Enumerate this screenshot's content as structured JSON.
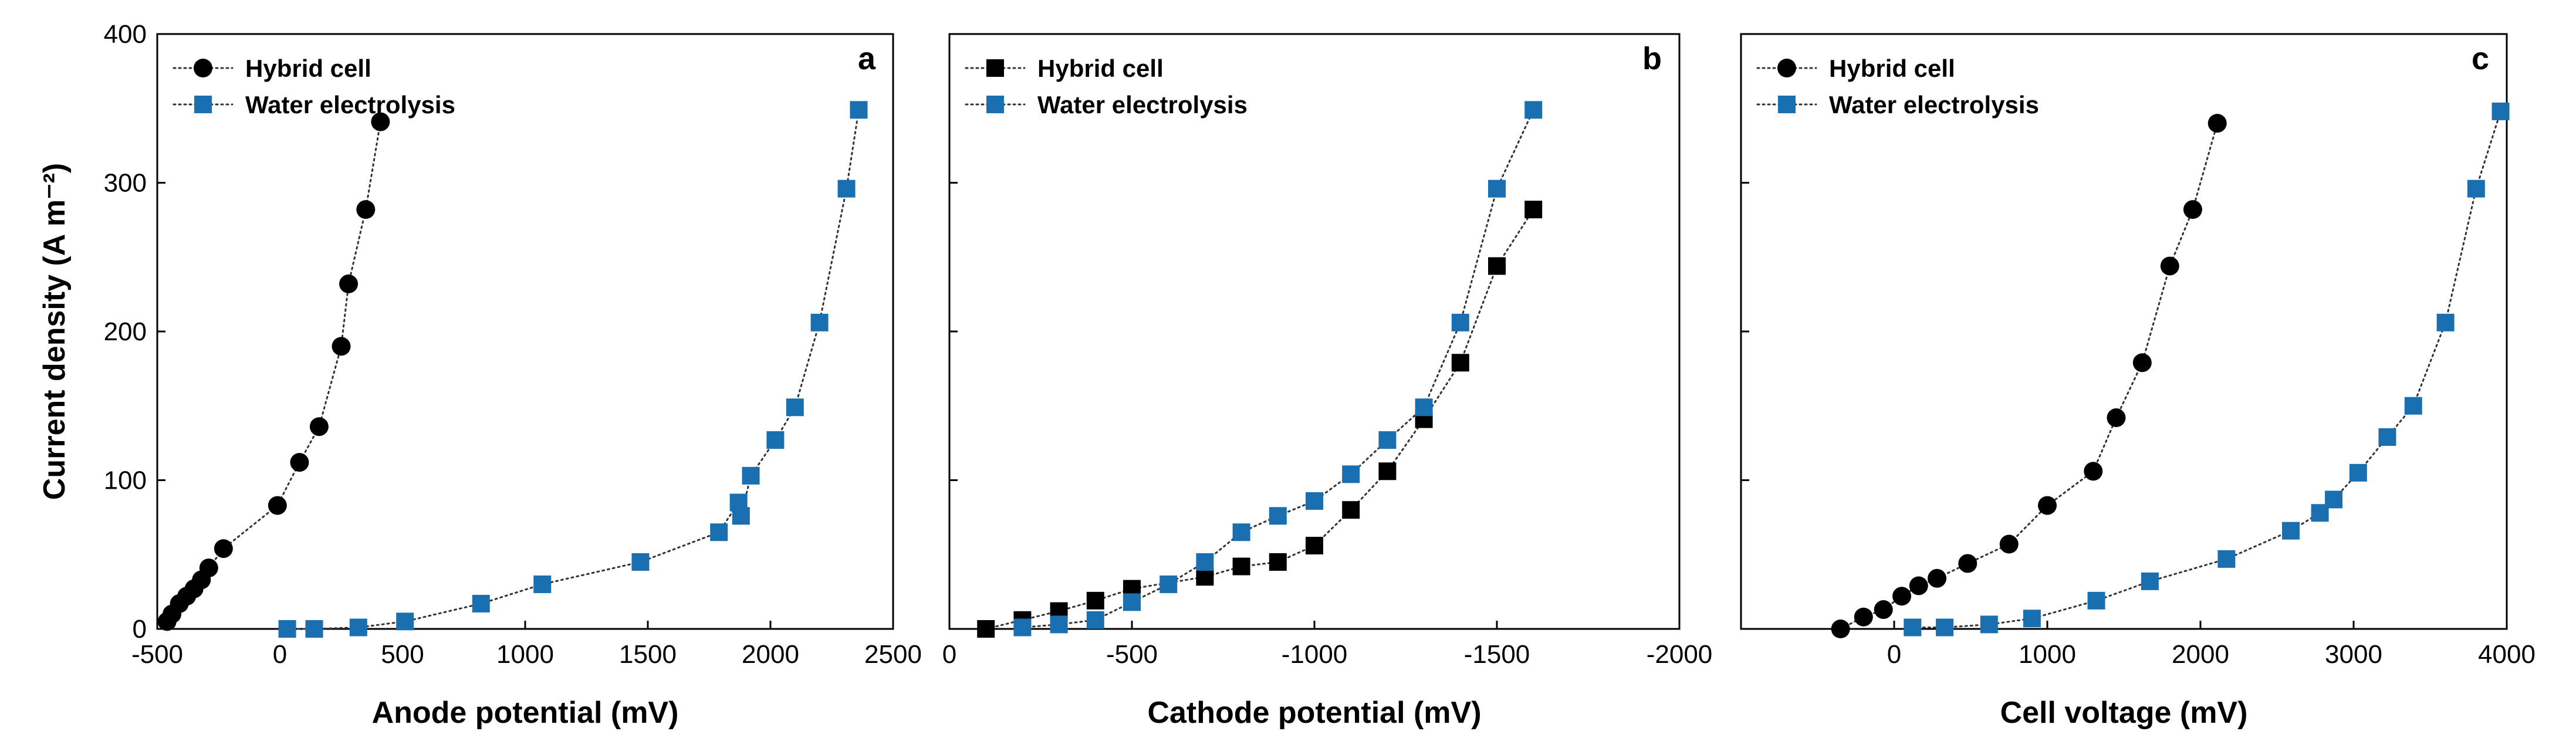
{
  "chart_data": [
    {
      "type": "scatter",
      "panel_label": "a",
      "xlabel": "Anode potential (mV)",
      "ylabel": "Current density (A m⁻²)",
      "xlim": [
        -500,
        2500
      ],
      "ylim": [
        0,
        400
      ],
      "x_ticks": [
        -500,
        0,
        500,
        1000,
        1500,
        2000,
        2500
      ],
      "x_tick_labels": [
        "-500",
        "0",
        "500",
        "1000",
        "1500",
        "2000",
        "2500"
      ],
      "y_ticks": [
        0,
        100,
        200,
        300,
        400
      ],
      "y_tick_labels": [
        "0",
        "100",
        "200",
        "300",
        "400"
      ],
      "legend_position": "top-left",
      "series": [
        {
          "name": "Hybrid cell",
          "marker": "circle",
          "color": "#000000",
          "x": [
            -460,
            -440,
            -410,
            -380,
            -350,
            -320,
            -290,
            -230,
            -10,
            80,
            160,
            250,
            280,
            350,
            410
          ],
          "y": [
            5,
            10,
            17,
            22,
            27,
            33,
            41,
            54,
            83,
            112,
            136,
            190,
            232,
            282,
            341
          ]
        },
        {
          "name": "Water electrolysis",
          "marker": "square",
          "color": "#1a6fb0",
          "x": [
            30,
            140,
            320,
            510,
            820,
            1070,
            1470,
            1790,
            1870,
            1880,
            1920,
            2020,
            2100,
            2200,
            2310,
            2360
          ],
          "y": [
            0,
            0,
            1,
            5,
            17,
            30,
            45,
            65,
            85,
            76,
            103,
            127,
            149,
            206,
            296,
            349
          ]
        }
      ]
    },
    {
      "type": "scatter",
      "panel_label": "b",
      "xlabel": "Cathode potential (mV)",
      "ylabel": "",
      "xlim": [
        0,
        -2000
      ],
      "ylim": [
        0,
        400
      ],
      "x_ticks": [
        0,
        -500,
        -1000,
        -1500,
        -2000
      ],
      "x_tick_labels": [
        "0",
        "-500",
        "-1000",
        "-1500",
        "-2000"
      ],
      "y_ticks": [
        0,
        100,
        200,
        300,
        400
      ],
      "legend_position": "top-left",
      "series": [
        {
          "name": "Hybrid cell",
          "marker": "square",
          "color": "#000000",
          "x": [
            -100,
            -200,
            -300,
            -400,
            -500,
            -700,
            -800,
            -900,
            -1000,
            -1100,
            -1200,
            -1300,
            -1400,
            -1500,
            -1600
          ],
          "y": [
            0,
            6,
            12,
            19,
            27,
            35,
            42,
            45,
            56,
            80,
            106,
            141,
            179,
            244,
            282
          ]
        },
        {
          "name": "Water electrolysis",
          "marker": "square",
          "color": "#1a6fb0",
          "x": [
            -200,
            -300,
            -400,
            -500,
            -600,
            -700,
            -800,
            -900,
            -1000,
            -1100,
            -1200,
            -1300,
            -1400,
            -1500,
            -1600
          ],
          "y": [
            1,
            3,
            6,
            18,
            30,
            45,
            65,
            76,
            86,
            104,
            127,
            149,
            206,
            296,
            349
          ]
        }
      ]
    },
    {
      "type": "scatter",
      "panel_label": "c",
      "xlabel": "Cell voltage (mV)",
      "ylabel": "",
      "xlim": [
        -1000,
        4000
      ],
      "ylim": [
        0,
        400
      ],
      "x_ticks": [
        0,
        1000,
        2000,
        3000,
        4000
      ],
      "x_tick_labels": [
        "0",
        "1000",
        "2000",
        "3000",
        "4000"
      ],
      "y_ticks": [
        0,
        100,
        200,
        300,
        400
      ],
      "legend_position": "top-left",
      "series": [
        {
          "name": "Hybrid cell",
          "marker": "circle",
          "color": "#000000",
          "x": [
            -350,
            -200,
            -70,
            50,
            160,
            280,
            480,
            750,
            1000,
            1300,
            1450,
            1620,
            1800,
            1950,
            2110
          ],
          "y": [
            0,
            8,
            13,
            22,
            29,
            34,
            44,
            57,
            83,
            106,
            142,
            179,
            244,
            282,
            340
          ]
        },
        {
          "name": "Water electrolysis",
          "marker": "square",
          "color": "#1a6fb0",
          "x": [
            120,
            330,
            620,
            900,
            1320,
            1670,
            2170,
            2590,
            2780,
            2870,
            3030,
            3220,
            3390,
            3600,
            3800,
            3960
          ],
          "y": [
            1,
            1,
            3,
            7,
            19,
            32,
            47,
            66,
            78,
            87,
            105,
            129,
            150,
            206,
            296,
            348
          ]
        }
      ]
    }
  ]
}
